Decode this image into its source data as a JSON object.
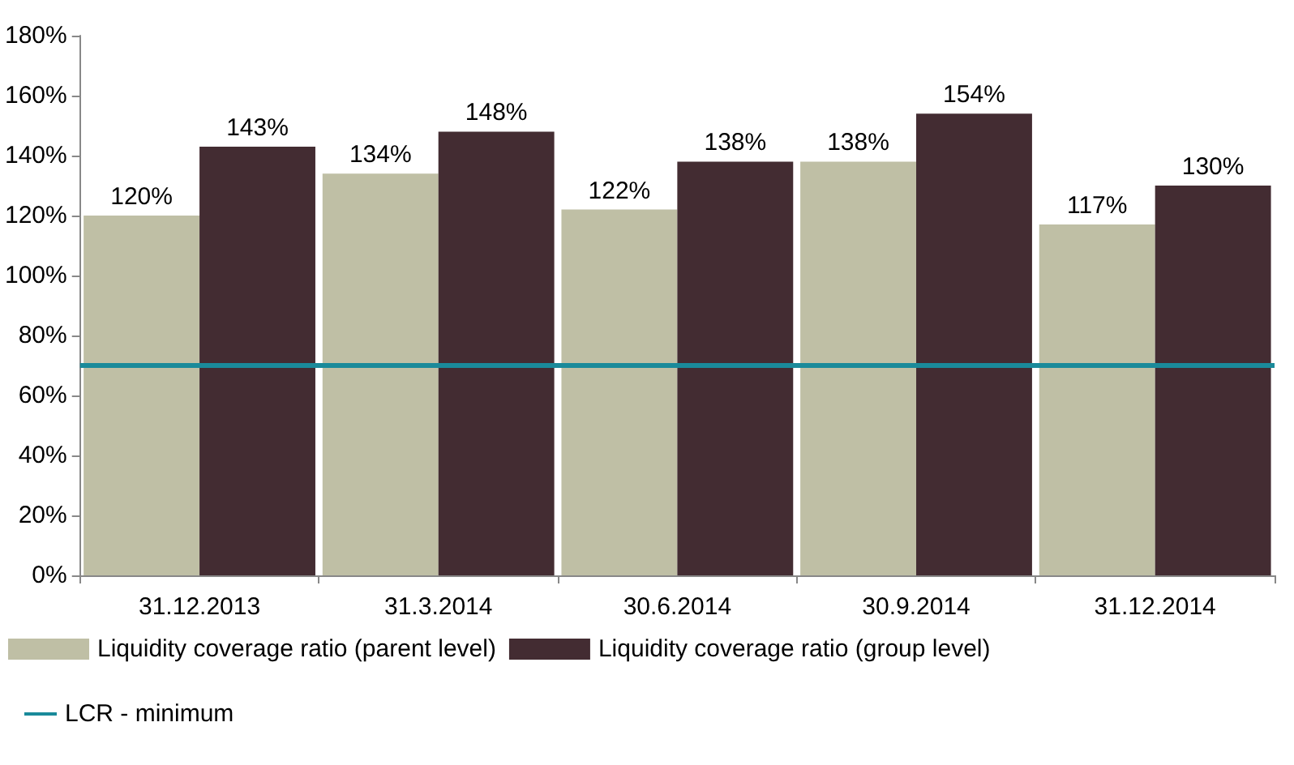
{
  "chart_data": {
    "type": "bar",
    "categories": [
      "31.12.2013",
      "31.3.2014",
      "30.6.2014",
      "30.9.2014",
      "31.12.2014"
    ],
    "series": [
      {
        "name": "Liquidity coverage ratio (parent level)",
        "color": "#bfbfa5",
        "values": [
          120,
          134,
          122,
          138,
          117
        ],
        "value_labels": [
          "120%",
          "134%",
          "122%",
          "138%",
          "117%"
        ]
      },
      {
        "name": "Liquidity coverage ratio (group level)",
        "color": "#432c32",
        "values": [
          143,
          148,
          138,
          154,
          130
        ],
        "value_labels": [
          "143%",
          "148%",
          "138%",
          "154%",
          "130%"
        ]
      }
    ],
    "ylim": [
      0,
      180
    ],
    "yticks": [
      {
        "value": 0,
        "label": "0%"
      },
      {
        "value": 20,
        "label": "20%"
      },
      {
        "value": 40,
        "label": "40%"
      },
      {
        "value": 60,
        "label": "60%"
      },
      {
        "value": 80,
        "label": "80%"
      },
      {
        "value": 100,
        "label": "100%"
      },
      {
        "value": 120,
        "label": "120%"
      },
      {
        "value": 140,
        "label": "140%"
      },
      {
        "value": 160,
        "label": "160%"
      },
      {
        "value": 180,
        "label": "180%"
      }
    ],
    "ref_lines": [
      {
        "axis": "y",
        "value": 70,
        "label": "LCR - minimum",
        "color": "#1a8a9a"
      }
    ],
    "grid": false,
    "legend": "bottom"
  }
}
